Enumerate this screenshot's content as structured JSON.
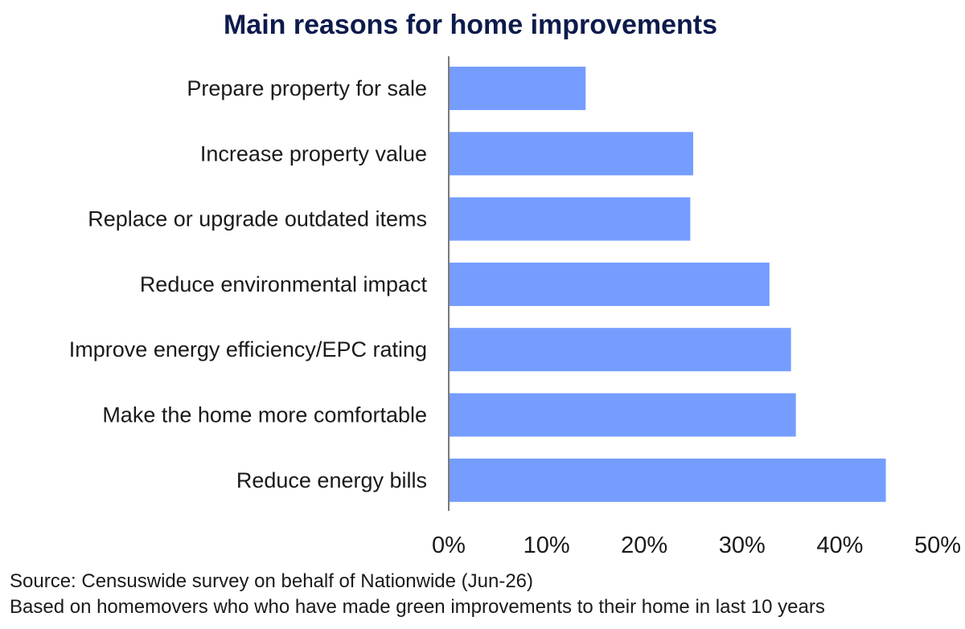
{
  "chart_data": {
    "type": "bar",
    "orientation": "horizontal",
    "title": "Main reasons for home improvements",
    "categories": [
      "Prepare property for sale",
      "Increase property value",
      "Replace or upgrade outdated items",
      "Reduce environmental impact",
      "Improve energy efficiency/EPC rating",
      "Make the home more comfortable",
      "Reduce energy bills"
    ],
    "values": [
      14,
      25,
      24.7,
      32.8,
      35,
      35.5,
      44.7
    ],
    "value_unit": "%",
    "xlim": [
      0,
      50
    ],
    "x_ticks": [
      0,
      10,
      20,
      30,
      40,
      50
    ],
    "x_tick_labels": [
      "0%",
      "10%",
      "20%",
      "30%",
      "40%",
      "50%"
    ],
    "xlabel": "",
    "ylabel": "",
    "grid": false,
    "legend": "none",
    "bar_color": "#759dff"
  },
  "notes": {
    "source": "Source: Censuswide survey on behalf of Nationwide (Jun-26)",
    "base": "Based on homemovers who who have made green improvements to their home in last 10 years"
  }
}
